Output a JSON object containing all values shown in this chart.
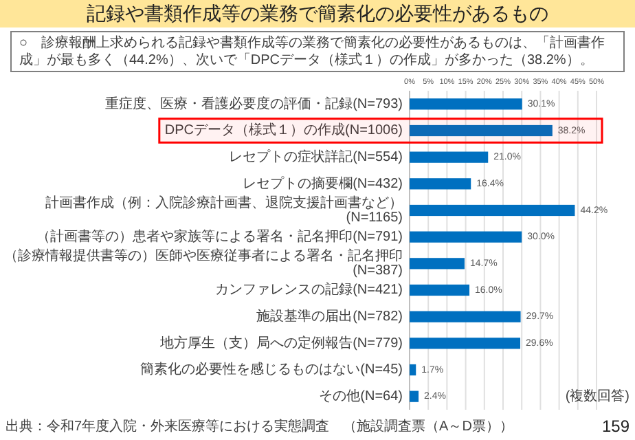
{
  "chart_data": {
    "type": "bar",
    "orientation": "horizontal",
    "title": "記録や書類作成等の業務で簡素化の必要性があるもの",
    "subtitle": "○　診療報酬上求められる記録や書類作成等の業務で簡素化の必要性があるものは、「計画書作成」が最も多く（44.2%）、次いで「DPCデータ（様式１）の作成」が多かった（38.2%）。",
    "categories": [
      "重症度、医療・看護必要度の評価・記録(N=793)",
      "DPCデータ（様式１）の作成(N=1006)",
      "レセプトの症状詳記(N=554)",
      "レセプトの摘要欄(N=432)",
      "計画書作成（例：入院診療計画書、退院支援計画書など）(N=1165)",
      "（計画書等の）患者や家族等による署名・記名押印(N=791)",
      "（診療情報提供書等の）医師や医療従事者による署名・記名押印(N=387)",
      "カンファレンスの記録(N=421)",
      "施設基準の届出(N=782)",
      "地方厚生（支）局への定例報告(N=779)",
      "簡素化の必要性を感じるものはない(N=45)",
      "その他(N=64)"
    ],
    "values": [
      30.1,
      38.2,
      21.0,
      16.4,
      44.2,
      30.0,
      14.7,
      16.0,
      29.7,
      29.6,
      1.7,
      2.4
    ],
    "value_labels": [
      "30.1%",
      "38.2%",
      "21.0%",
      "16.4%",
      "44.2%",
      "30.0%",
      "14.7%",
      "16.0%",
      "29.7%",
      "29.6%",
      "1.7%",
      "2.4%"
    ],
    "color": "#0070c0",
    "xlim": [
      0,
      50
    ],
    "xticks": [
      {
        "value": 0,
        "label": "0%"
      },
      {
        "value": 5,
        "label": "5%"
      },
      {
        "value": 10,
        "label": "10%"
      },
      {
        "value": 15,
        "label": "15%"
      },
      {
        "value": 20,
        "label": "20%"
      },
      {
        "value": 25,
        "label": "25%"
      },
      {
        "value": 30,
        "label": "30%"
      },
      {
        "value": 35,
        "label": "35%"
      },
      {
        "value": 40,
        "label": "40%"
      },
      {
        "value": 45,
        "label": "45%"
      },
      {
        "value": 50,
        "label": "50%"
      }
    ],
    "grid": "x",
    "bands": [
      {
        "axis": "y",
        "from": "DPCデータ（様式１）の作成(N=1006)",
        "to": "DPCデータ（様式１）の作成(N=1006)",
        "color": "#ff0000"
      }
    ],
    "annotations": [
      "(複数回答)",
      "出典：令和7年度入院・外来医療等における実態調査　（施設調査票（A～D票））",
      "159"
    ]
  }
}
